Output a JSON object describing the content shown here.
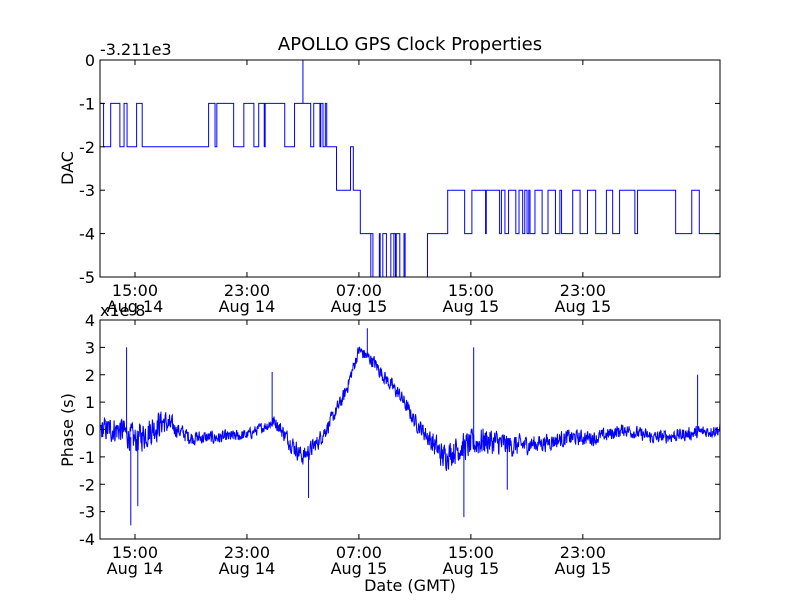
{
  "figure": {
    "title": "APOLLO GPS Clock Properties"
  },
  "chart_data": [
    {
      "type": "line",
      "title": "APOLLO GPS Clock Properties",
      "xlabel": "",
      "ylabel": "DAC",
      "offset_label": "-3.211e3",
      "ylim": [
        -5,
        0
      ],
      "yticks": [
        0,
        -1,
        -2,
        -3,
        -4,
        -5
      ],
      "ytick_labels": [
        "0",
        "-1",
        "-2",
        "-3",
        "-4",
        "-5"
      ],
      "xlim_hours": [
        12.5,
        56.8
      ],
      "xticks_hours": [
        15,
        23,
        31,
        39,
        47
      ],
      "xtick_labels": [
        [
          "15:00",
          "Aug 14"
        ],
        [
          "23:00",
          "Aug 14"
        ],
        [
          "07:00",
          "Aug 15"
        ],
        [
          "15:00",
          "Aug 15"
        ],
        [
          "23:00",
          "Aug 15"
        ]
      ],
      "line_color": "#0000ff",
      "series": [
        {
          "name": "DAC",
          "segments": [
            {
              "from": 12.5,
              "to": 14.3,
              "min": -2,
              "max": -1,
              "p": 0.35
            },
            {
              "from": 14.3,
              "to": 15.9,
              "min": -2,
              "max": -1,
              "p": 0.3
            },
            {
              "from": 15.9,
              "to": 20.0,
              "min": -2,
              "max": -2,
              "p": 0.0
            },
            {
              "from": 20.0,
              "to": 24.3,
              "min": -2,
              "max": -1,
              "p": 0.2
            },
            {
              "from": 24.3,
              "to": 25.7,
              "min": -1,
              "max": -1,
              "p": 0.0
            },
            {
              "from": 25.7,
              "to": 26.4,
              "min": -2,
              "max": -2,
              "p": 0.0
            },
            {
              "from": 26.4,
              "to": 27.4,
              "min": -1,
              "max": -1,
              "p": 0.0
            },
            {
              "from": 27.4,
              "to": 28.7,
              "min": -2,
              "max": -1,
              "p": 0.25
            },
            {
              "from": 28.7,
              "to": 29.4,
              "min": -2,
              "max": -2,
              "p": 0.0
            },
            {
              "from": 29.4,
              "to": 30.4,
              "min": -3,
              "max": -3,
              "p": 0.0
            },
            {
              "from": 30.4,
              "to": 30.6,
              "min": -2,
              "max": -2,
              "p": 0.0
            },
            {
              "from": 30.6,
              "to": 31.1,
              "min": -3,
              "max": -3,
              "p": 0.0
            },
            {
              "from": 31.1,
              "to": 31.7,
              "min": -4,
              "max": -4,
              "p": 0.0
            },
            {
              "from": 31.7,
              "to": 34.3,
              "min": -5,
              "max": -4,
              "p": 0.35
            },
            {
              "from": 34.3,
              "to": 35.9,
              "min": -5,
              "max": -5,
              "p": 0.0
            },
            {
              "from": 35.9,
              "to": 36.6,
              "min": -4,
              "max": -4,
              "p": 0.0
            },
            {
              "from": 36.6,
              "to": 39.6,
              "min": -4,
              "max": -3,
              "p": 0.2
            },
            {
              "from": 39.6,
              "to": 44.2,
              "min": -4,
              "max": -3,
              "p": 0.35
            },
            {
              "from": 44.2,
              "to": 56.8,
              "min": -4,
              "max": -3,
              "p": 0.18
            }
          ],
          "spikes": [
            {
              "at": 27.0,
              "value": 0
            },
            {
              "at": 31.85,
              "value": -5
            },
            {
              "at": 33.5,
              "value": -5
            }
          ]
        }
      ]
    },
    {
      "type": "line",
      "title": "",
      "xlabel": "Date (GMT)",
      "ylabel": "Phase (s)",
      "offset_label": "x1e-8",
      "ylim": [
        -4,
        4
      ],
      "yticks": [
        4,
        3,
        2,
        1,
        0,
        -1,
        -2,
        -3,
        -4
      ],
      "ytick_labels": [
        "4",
        "3",
        "2",
        "1",
        "0",
        "-1",
        "-2",
        "-3",
        "-4"
      ],
      "xlim_hours": [
        12.5,
        56.8
      ],
      "xticks_hours": [
        15,
        23,
        31,
        39,
        47
      ],
      "xtick_labels": [
        [
          "15:00",
          "Aug 14"
        ],
        [
          "23:00",
          "Aug 14"
        ],
        [
          "07:00",
          "Aug 15"
        ],
        [
          "15:00",
          "Aug 15"
        ],
        [
          "23:00",
          "Aug 15"
        ]
      ],
      "line_color": "#0000ff",
      "series": [
        {
          "name": "Phase",
          "trend_hours": [
            12.5,
            14.0,
            15.0,
            17.0,
            19.0,
            21.0,
            23.0,
            25.0,
            26.0,
            27.0,
            28.0,
            29.0,
            30.0,
            31.0,
            32.0,
            33.0,
            34.0,
            35.0,
            36.0,
            37.0,
            38.0,
            40.0,
            42.0,
            44.0,
            46.0,
            48.0,
            50.0,
            52.0,
            54.0,
            56.8
          ],
          "trend_values": [
            0.0,
            0.0,
            -0.4,
            0.3,
            -0.3,
            -0.3,
            -0.2,
            0.3,
            -0.4,
            -1.0,
            -0.5,
            0.3,
            1.3,
            2.9,
            2.5,
            1.8,
            1.2,
            0.3,
            -0.3,
            -1.0,
            -0.7,
            -0.4,
            -0.6,
            -0.5,
            -0.3,
            -0.3,
            0.0,
            -0.3,
            -0.2,
            0.0
          ],
          "noise_hours": [
            12.5,
            16.5,
            18.0,
            24.0,
            26.5,
            28.5,
            31.0,
            35.5,
            36.5,
            40.0,
            43.0,
            50.0,
            56.8
          ],
          "noise_values": [
            0.45,
            0.6,
            0.3,
            0.2,
            0.35,
            0.3,
            0.25,
            0.3,
            0.5,
            0.55,
            0.35,
            0.25,
            0.25
          ],
          "spikes": [
            {
              "at": 14.4,
              "value": 3.0
            },
            {
              "at": 14.7,
              "value": -3.5
            },
            {
              "at": 15.2,
              "value": -2.8
            },
            {
              "at": 24.8,
              "value": 2.1
            },
            {
              "at": 27.4,
              "value": -2.5
            },
            {
              "at": 31.6,
              "value": 3.7
            },
            {
              "at": 38.5,
              "value": -3.2
            },
            {
              "at": 39.2,
              "value": 3.0
            },
            {
              "at": 41.6,
              "value": -2.2
            },
            {
              "at": 55.2,
              "value": 2.0
            }
          ]
        }
      ]
    }
  ]
}
